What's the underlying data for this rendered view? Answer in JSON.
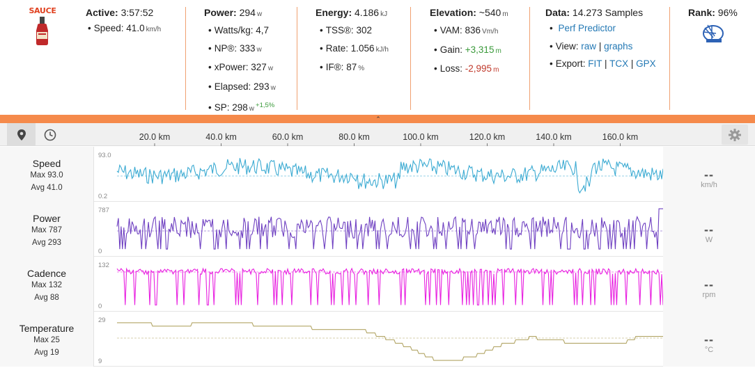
{
  "logo": {
    "text": "SAUCE",
    "icon": "sauce-bottle-icon"
  },
  "active": {
    "label": "Active:",
    "value": "3:57:52",
    "speed_label": "Speed:",
    "speed_value": "41.0",
    "speed_unit": "km/h"
  },
  "power": {
    "label": "Power:",
    "value": "294",
    "unit": "w",
    "rows": [
      {
        "label": "Watts/kg:",
        "value": "4,7",
        "unit": ""
      },
      {
        "label": "NP®:",
        "value": "333",
        "unit": "w"
      },
      {
        "label": "xPower:",
        "value": "327",
        "unit": "w"
      },
      {
        "label": "Elapsed:",
        "value": "293",
        "unit": "w"
      },
      {
        "label": "SP:",
        "value": "298",
        "unit": "w",
        "extra": "+1,5%"
      }
    ]
  },
  "energy": {
    "label": "Energy:",
    "value": "4.186",
    "unit": "kJ",
    "rows": [
      {
        "label": "TSS®:",
        "value": "302",
        "unit": ""
      },
      {
        "label": "Rate:",
        "value": "1.056",
        "unit": "kJ/h"
      },
      {
        "label": "IF®:",
        "value": "87",
        "unit": "%"
      }
    ]
  },
  "elevation": {
    "label": "Elevation:",
    "value": "~540",
    "unit": "m",
    "rows": [
      {
        "label": "VAM:",
        "value": "836",
        "unit": "Vm/h"
      },
      {
        "label": "Gain:",
        "value": "+3,315",
        "unit": "m"
      },
      {
        "label": "Loss:",
        "value": "-2,995",
        "unit": "m"
      }
    ]
  },
  "data": {
    "label": "Data:",
    "value": "14.273 Samples",
    "predictor": "Perf Predictor",
    "view_label": "View:",
    "view_raw": "raw",
    "view_graphs": "graphs",
    "export_label": "Export:",
    "export_fit": "FIT",
    "export_tcx": "TCX",
    "export_gpx": "GPX",
    "sep": "|"
  },
  "rank": {
    "label": "Rank:",
    "value": "96%",
    "badge": "World Tour badge"
  },
  "toolbar": {
    "axis_ticks": [
      "20.0 km",
      "40.0 km",
      "60.0 km",
      "80.0 km",
      "100.0 km",
      "120.0 km",
      "140.0 km",
      "160.0 km"
    ]
  },
  "streams": [
    {
      "name": "Speed",
      "max_label": "Max 93.0",
      "avg_label": "Avg 41.0",
      "top": "93.0",
      "bottom": "0.2",
      "current": "--",
      "unit": "km/h",
      "color": "#3aaad2"
    },
    {
      "name": "Power",
      "max_label": "Max 787",
      "avg_label": "Avg 293",
      "top": "787",
      "bottom": "0",
      "current": "--",
      "unit": "W",
      "color": "#6e3fc1"
    },
    {
      "name": "Cadence",
      "max_label": "Max 132",
      "avg_label": "Avg 88",
      "top": "132",
      "bottom": "0",
      "current": "--",
      "unit": "rpm",
      "color": "#e81fe0"
    },
    {
      "name": "Temperature",
      "max_label": "Max 25",
      "avg_label": "Avg 19",
      "top": "29",
      "bottom": "9",
      "current": "--",
      "unit": "°C",
      "color": "#b2a565"
    }
  ]
}
